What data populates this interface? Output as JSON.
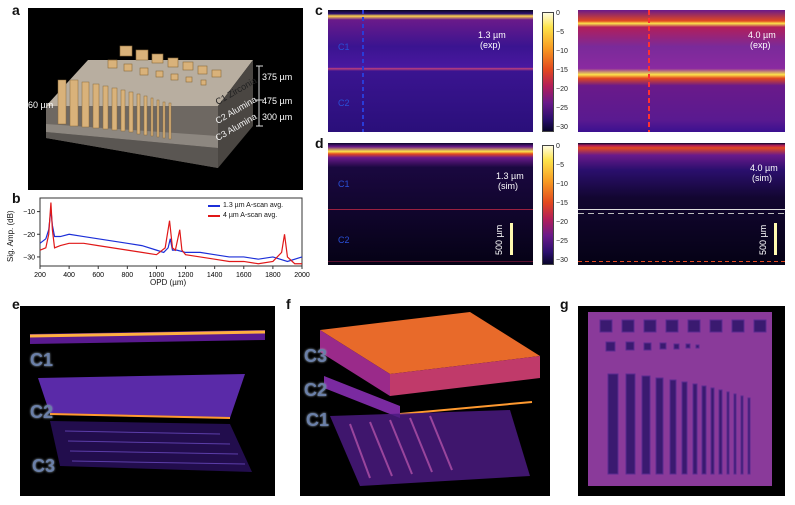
{
  "panel_labels": {
    "a": "a",
    "b": "b",
    "c": "c",
    "d": "d",
    "e": "e",
    "f": "f",
    "g": "g"
  },
  "panel_a": {
    "thickness_c1": "375 µm",
    "thickness_c2": "475 µm",
    "thickness_c3": "300 µm",
    "width_label": "60 µm",
    "layer_c1": "C1 Zirconia",
    "layer_c2": "C2 Alumina",
    "layer_c3": "C3 Alumina"
  },
  "panel_c": {
    "left_label": "1.3 µm",
    "left_sub": "(exp)",
    "right_label": "4.0 µm",
    "right_sub": "(exp)",
    "c1": "C1",
    "c2": "C2",
    "cbar_ticks": [
      "0",
      "−5",
      "−10",
      "−15",
      "−20",
      "−25",
      "−30"
    ]
  },
  "panel_d": {
    "left_label": "1.3 µm",
    "left_sub": "(sim)",
    "right_label": "4.0 µm",
    "right_sub": "(sim)",
    "c1": "C1",
    "c2": "C2",
    "scale_left": "500 µm",
    "scale_right": "500 µm",
    "cbar_ticks": [
      "0",
      "−5",
      "−10",
      "−15",
      "−20",
      "−25",
      "−30"
    ]
  },
  "panel_e": {
    "c1": "C1",
    "c2": "C2",
    "c3": "C3"
  },
  "panel_f": {
    "c1": "C1",
    "c2": "C2",
    "c3": "C3"
  },
  "colors": {
    "blue_series": "#1c2fd8",
    "red_series": "#e01818"
  },
  "chart_data": {
    "type": "line",
    "xlabel": "OPD (µm)",
    "ylabel": "Sig. Amp. (dB)",
    "xlim": [
      200,
      2000
    ],
    "ylim": [
      -34,
      -4
    ],
    "xticks": [
      200,
      400,
      600,
      800,
      1000,
      1200,
      1400,
      1600,
      1800,
      2000
    ],
    "yticks": [
      -10,
      -20,
      -30
    ],
    "legend_position": "top-right",
    "series": [
      {
        "name": "1.3 µm A-scan avg.",
        "color": "#1c2fd8",
        "x": [
          200,
          240,
          260,
          275,
          285,
          300,
          340,
          400,
          500,
          600,
          700,
          800,
          900,
          1000,
          1050,
          1080,
          1095,
          1110,
          1140,
          1200,
          1300,
          1400,
          1500,
          1600,
          1700,
          1800,
          1900,
          2000
        ],
        "y": [
          -24,
          -22,
          -18,
          -9,
          -16,
          -21,
          -21,
          -20,
          -21,
          -22,
          -23,
          -24,
          -25,
          -27,
          -28,
          -26,
          -22,
          -27,
          -27,
          -28,
          -28,
          -29,
          -30,
          -30,
          -31,
          -30,
          -32,
          -30
        ]
      },
      {
        "name": "4 µm A-scan avg.",
        "color": "#e01818",
        "x": [
          200,
          240,
          260,
          275,
          285,
          300,
          340,
          400,
          500,
          600,
          700,
          800,
          900,
          1000,
          1060,
          1090,
          1110,
          1130,
          1160,
          1175,
          1200,
          1300,
          1400,
          1500,
          1600,
          1700,
          1800,
          1860,
          1880,
          1900,
          1950,
          2000
        ],
        "y": [
          -27,
          -26,
          -20,
          -6,
          -18,
          -26,
          -25,
          -24,
          -24,
          -25,
          -26,
          -27,
          -28,
          -29,
          -26,
          -14,
          -26,
          -27,
          -18,
          -27,
          -29,
          -30,
          -31,
          -32,
          -32,
          -33,
          -32,
          -28,
          -20,
          -30,
          -33,
          -33
        ]
      }
    ]
  }
}
